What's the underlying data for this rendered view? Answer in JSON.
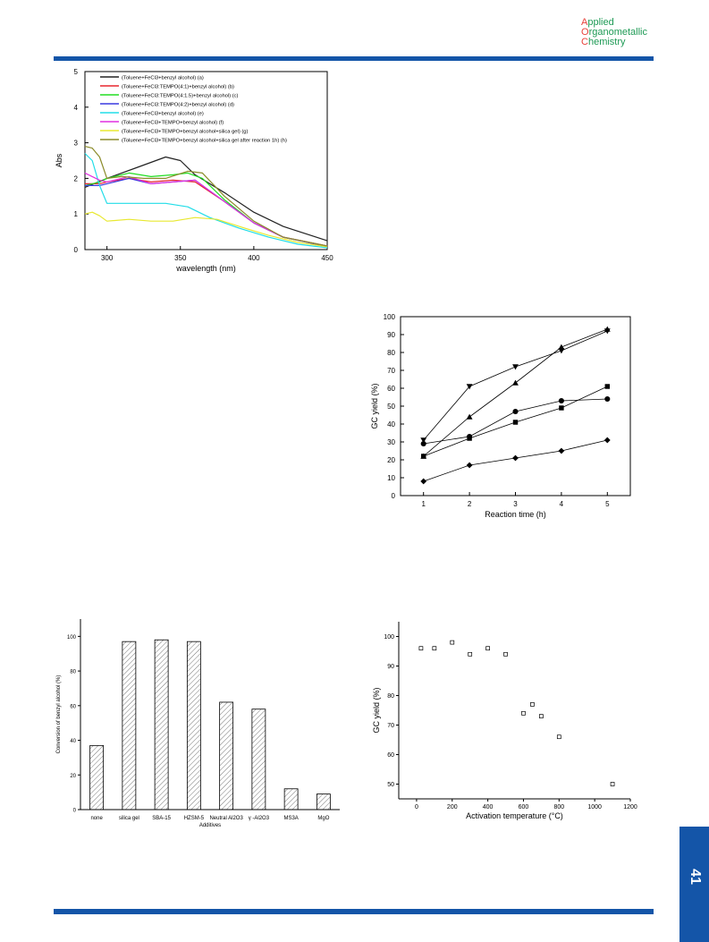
{
  "journal": {
    "logo_lines": [
      {
        "cap": "A",
        "rest": "pplied"
      },
      {
        "cap": "O",
        "rest": "rganometallic"
      },
      {
        "cap": "C",
        "rest": "hemistry"
      }
    ],
    "page_number": "41"
  },
  "colors": {
    "bar_blue": "#1455a8",
    "logo_red": "#e8413a",
    "logo_green": "#1e9a55"
  },
  "chart_data": [
    {
      "id": "uvvis",
      "type": "line",
      "xlabel": "wavelength (nm)",
      "ylabel": "Abs",
      "xlim": [
        285,
        450
      ],
      "ylim": [
        0,
        5
      ],
      "xticks": [
        300,
        350,
        400,
        450
      ],
      "yticks": [
        0,
        1,
        2,
        3,
        4,
        5
      ],
      "legend_position": "top-left",
      "series": [
        {
          "name": "(Toluene+FeCl3+benzyl alcohol) (a)",
          "color": "#222222",
          "x": [
            285,
            300,
            320,
            340,
            350,
            360,
            380,
            400,
            420,
            450
          ],
          "y": [
            1.75,
            2.0,
            2.3,
            2.6,
            2.5,
            2.1,
            1.6,
            1.05,
            0.65,
            0.25
          ]
        },
        {
          "name": "(Toluene+FeCl3:TEMPO(4:1)+benzyl alcohol) (b)",
          "color": "#e8262e",
          "x": [
            285,
            295,
            300,
            315,
            330,
            345,
            360,
            380,
            400,
            420,
            450
          ],
          "y": [
            1.85,
            1.85,
            1.9,
            2.0,
            1.9,
            1.95,
            1.9,
            1.35,
            0.75,
            0.35,
            0.1
          ]
        },
        {
          "name": "(Toluene+FeCl3:TEMPO(4:1.5)+benzyl alcohol) (c)",
          "color": "#22dd22",
          "x": [
            285,
            295,
            300,
            315,
            330,
            345,
            355,
            365,
            380,
            400,
            420,
            450
          ],
          "y": [
            1.8,
            1.9,
            2.0,
            2.15,
            2.05,
            2.1,
            2.15,
            2.0,
            1.4,
            0.75,
            0.35,
            0.1
          ]
        },
        {
          "name": "(Toluene+FeCl3:TEMPO(4:2)+benzyl alcohol) (d)",
          "color": "#3a3ae0",
          "x": [
            285,
            295,
            300,
            315,
            330,
            345,
            360,
            380,
            400,
            420,
            450
          ],
          "y": [
            1.8,
            1.8,
            1.85,
            2.0,
            1.85,
            1.9,
            1.95,
            1.35,
            0.75,
            0.35,
            0.08
          ]
        },
        {
          "name": "(Toluene+FeCl3+benzyl alcohol) (e)",
          "color": "#22dde8",
          "x": [
            285,
            290,
            295,
            300,
            320,
            340,
            355,
            370,
            390,
            410,
            430,
            450
          ],
          "y": [
            2.7,
            2.5,
            1.8,
            1.3,
            1.3,
            1.3,
            1.2,
            0.9,
            0.6,
            0.35,
            0.15,
            0.05
          ]
        },
        {
          "name": "(Toluene+FeCl3+TEMPO+benzyl alcohol) (f)",
          "color": "#e030e0",
          "x": [
            285,
            295,
            300,
            315,
            330,
            345,
            360,
            380,
            400,
            420,
            450
          ],
          "y": [
            2.15,
            1.95,
            1.9,
            2.05,
            1.85,
            1.9,
            1.95,
            1.35,
            0.75,
            0.35,
            0.1
          ]
        },
        {
          "name": "(Toluene+FeCl3+TEMPO+benzyl alcohol+silica gel) (g)",
          "color": "#e8e830",
          "x": [
            285,
            290,
            295,
            300,
            315,
            330,
            345,
            360,
            375,
            390,
            410,
            430,
            450
          ],
          "y": [
            1.0,
            1.05,
            0.95,
            0.8,
            0.85,
            0.8,
            0.8,
            0.9,
            0.85,
            0.65,
            0.4,
            0.2,
            0.08
          ]
        },
        {
          "name": "(Toluene+FeCl3+TEMPO+benzyl alcohol+silica gel after reaction 1h) (h)",
          "color": "#8b8b2a",
          "x": [
            285,
            290,
            295,
            300,
            310,
            325,
            340,
            355,
            365,
            380,
            400,
            420,
            450
          ],
          "y": [
            2.9,
            2.85,
            2.6,
            2.0,
            2.05,
            2.0,
            2.0,
            2.2,
            2.15,
            1.5,
            0.8,
            0.35,
            0.1
          ]
        }
      ]
    },
    {
      "id": "gc-time",
      "type": "line",
      "xlabel": "Reaction time (h)",
      "ylabel": "GC yield (%)",
      "xlim": [
        0.5,
        5.5
      ],
      "ylim": [
        0,
        100
      ],
      "xticks": [
        1,
        2,
        3,
        4,
        5
      ],
      "yticks": [
        0,
        10,
        20,
        30,
        40,
        50,
        60,
        70,
        80,
        90,
        100
      ],
      "series": [
        {
          "marker": "down-triangle",
          "x": [
            1,
            2,
            3,
            4,
            5
          ],
          "y": [
            31,
            61,
            72,
            81,
            92
          ]
        },
        {
          "marker": "up-triangle",
          "x": [
            1,
            2,
            3,
            4,
            5
          ],
          "y": [
            22,
            44,
            63,
            83,
            93
          ]
        },
        {
          "marker": "square",
          "x": [
            1,
            2,
            3,
            4,
            5
          ],
          "y": [
            22,
            32,
            41,
            49,
            61
          ]
        },
        {
          "marker": "circle",
          "x": [
            1,
            2,
            3,
            4,
            5
          ],
          "y": [
            29,
            33,
            47,
            53,
            54
          ]
        },
        {
          "marker": "diamond",
          "x": [
            1,
            2,
            3,
            4,
            5
          ],
          "y": [
            8,
            17,
            21,
            25,
            31
          ]
        }
      ]
    },
    {
      "id": "additives",
      "type": "bar",
      "xlabel": "Additives",
      "ylabel": "Conversion of benzyl alcohol (%)",
      "ylim": [
        0,
        110
      ],
      "yticks": [
        0,
        20,
        40,
        60,
        80,
        100
      ],
      "categories": [
        "none",
        "silica gel",
        "SBA-15",
        "HZSM-5",
        "Neutral Al2O3",
        "γ -Al2O3",
        "MS3A",
        "MgO"
      ],
      "values": [
        37,
        97,
        98,
        97,
        62,
        58,
        12,
        9
      ]
    },
    {
      "id": "activation",
      "type": "scatter",
      "xlabel": "Activation temperature (°C)",
      "ylabel": "GC yield (%)",
      "xlim": [
        -100,
        1200
      ],
      "ylim": [
        45,
        105
      ],
      "xticks": [
        0,
        200,
        400,
        600,
        800,
        1000,
        1200
      ],
      "yticks": [
        50,
        60,
        70,
        80,
        90,
        100
      ],
      "x": [
        25,
        100,
        200,
        300,
        400,
        500,
        600,
        650,
        700,
        800,
        1100
      ],
      "y": [
        96,
        96,
        98,
        94,
        96,
        94,
        74,
        77,
        73,
        66,
        50
      ]
    }
  ]
}
